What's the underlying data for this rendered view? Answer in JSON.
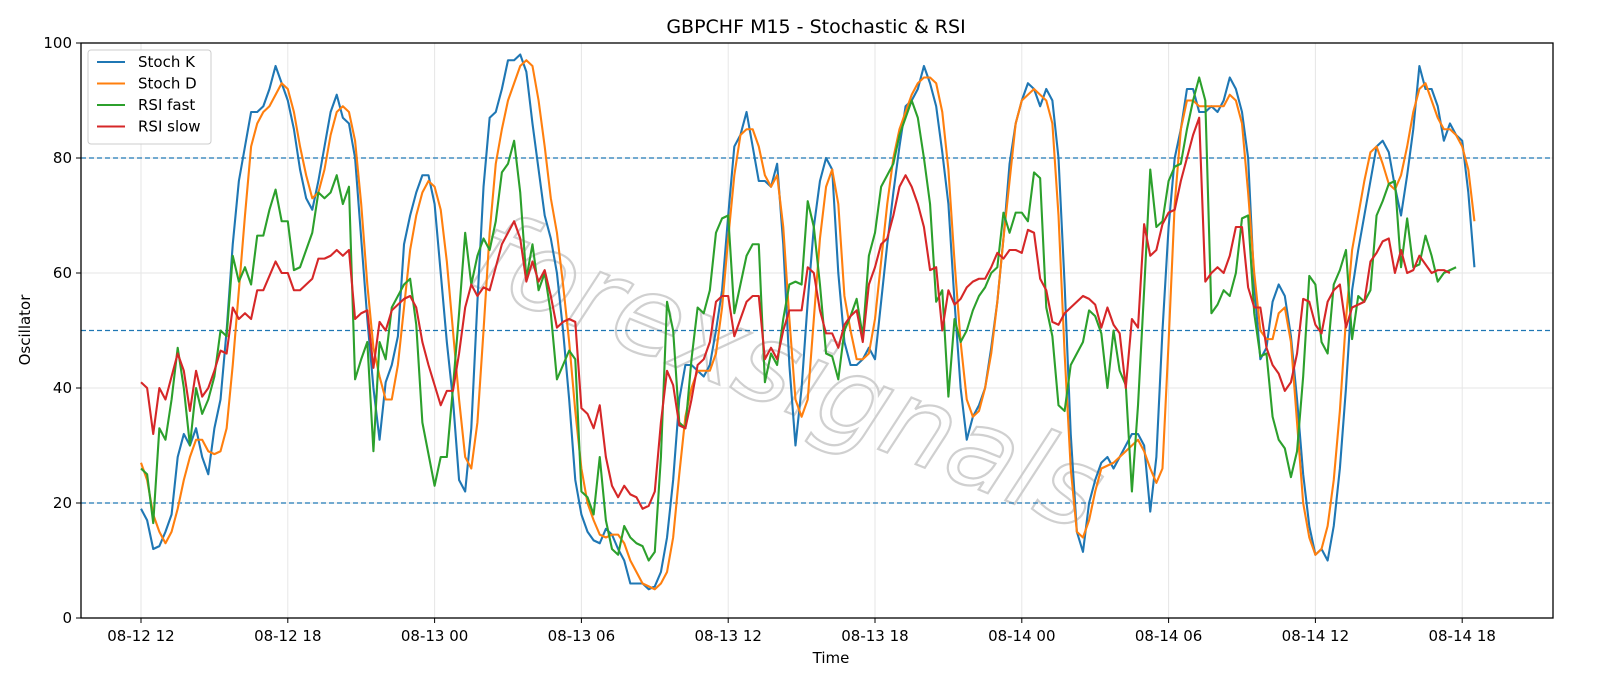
{
  "chart_data": {
    "type": "line",
    "title": "GBPCHF M15 - Stochastic & RSI",
    "xlabel": "Time",
    "ylabel": "Oscillator",
    "ylim": [
      0,
      100
    ],
    "yticks": [
      0,
      20,
      40,
      60,
      80,
      100
    ],
    "x_tick_labels": [
      "08-12 12",
      "08-12 18",
      "08-13 00",
      "08-13 06",
      "08-13 12",
      "08-13 18",
      "08-14 00",
      "08-14 06",
      "08-14 12",
      "08-14 18"
    ],
    "x_start": "08-12 12:00",
    "x_end": "08-14 19:00",
    "interval_minutes": 15,
    "grid": true,
    "legend_position": "top-left",
    "reference_lines": [
      20,
      50,
      80
    ],
    "reference_line_color": "#1f77b4",
    "watermark": "forexsignals",
    "series": [
      {
        "name": "Stoch K",
        "color": "#1f77b4",
        "values": [
          19,
          17,
          12,
          12.5,
          15,
          18,
          28,
          32,
          30,
          33,
          28,
          25,
          33,
          38,
          50,
          65,
          76,
          82,
          88,
          88,
          89,
          92,
          96,
          93,
          90,
          85,
          78,
          73,
          71,
          76,
          82,
          88,
          91,
          87,
          86,
          80,
          66,
          52,
          40,
          31,
          41,
          44,
          49,
          65,
          70,
          74,
          77,
          77,
          72,
          60,
          48,
          38,
          24,
          22,
          33,
          55,
          75,
          87,
          88,
          92,
          97,
          97,
          98,
          95,
          86,
          78,
          70,
          66,
          60,
          50,
          38,
          24,
          18,
          15,
          13.5,
          13,
          15.5,
          14.5,
          12,
          10,
          6,
          6,
          6,
          5,
          5.5,
          8,
          14,
          24,
          38,
          44,
          44,
          43,
          42,
          44,
          50,
          57,
          70,
          82,
          84,
          88,
          82,
          76,
          76,
          75,
          79,
          65,
          44,
          30,
          40,
          55,
          68,
          76,
          80,
          78,
          60,
          48,
          44,
          44,
          45,
          47,
          45,
          55,
          65,
          74,
          82,
          89,
          90,
          92,
          96,
          93,
          89,
          81,
          72,
          55,
          40,
          31,
          35,
          37,
          40,
          47,
          55,
          66,
          79,
          86,
          90,
          93,
          92,
          89,
          92,
          90,
          80,
          58,
          32,
          15,
          11.5,
          20,
          24,
          27,
          28,
          26,
          28,
          30,
          32,
          32,
          30,
          18.5,
          28,
          50,
          68,
          80,
          85,
          92,
          92,
          88,
          88,
          89,
          88,
          90,
          94,
          92,
          88,
          80,
          58,
          45,
          47,
          55,
          58,
          56,
          49,
          38,
          25,
          16,
          11,
          12,
          10,
          16,
          26,
          40,
          57,
          64,
          70,
          76,
          82,
          83,
          81,
          75,
          70,
          77,
          85,
          96,
          92,
          92,
          89,
          83,
          86,
          84,
          83,
          74,
          61
        ]
      },
      {
        "name": "Stoch D",
        "color": "#ff7f0e",
        "values": [
          27,
          24,
          18,
          15,
          13,
          15,
          19,
          24,
          28,
          31,
          31,
          29,
          28.5,
          29,
          33,
          44,
          57,
          70,
          82,
          86,
          88,
          89,
          91,
          93,
          92,
          88,
          82,
          77,
          73,
          74,
          78,
          84,
          88,
          89,
          88,
          83,
          72,
          58,
          47,
          42,
          38,
          38,
          44,
          54,
          64,
          70,
          74,
          76,
          75,
          71,
          62,
          50,
          38,
          28,
          26,
          34,
          50,
          67,
          79,
          85,
          90,
          93,
          96,
          97,
          96,
          90,
          82,
          73,
          67,
          58,
          48,
          36,
          26,
          20,
          17,
          14.5,
          14,
          14.5,
          14.5,
          13,
          10,
          8,
          6,
          5.5,
          5,
          6,
          8,
          14,
          25,
          35,
          40,
          43,
          43,
          43,
          46,
          54,
          66,
          77,
          84,
          85,
          85,
          82,
          77,
          75,
          77,
          68,
          52,
          38,
          35,
          38,
          52,
          66,
          75,
          78,
          72,
          56,
          50,
          45,
          45,
          46,
          52,
          62,
          72,
          80,
          85,
          88,
          91,
          93,
          94,
          94,
          93,
          88,
          78,
          62,
          48,
          38,
          35,
          36,
          40,
          46,
          55,
          66,
          76,
          86,
          90,
          91,
          92,
          91,
          90,
          86,
          70,
          46,
          26,
          15,
          14,
          17,
          22,
          26,
          26.5,
          27,
          28,
          29,
          30,
          31,
          29,
          26,
          23.5,
          26,
          48,
          72,
          85,
          90,
          90,
          89,
          89,
          89,
          89,
          89,
          91,
          90,
          86,
          74,
          60,
          50,
          48.5,
          48.5,
          53,
          54,
          48,
          34,
          20,
          14,
          11,
          12,
          16,
          24,
          36,
          52,
          64,
          70,
          76,
          81,
          82,
          79,
          75.5,
          74.5,
          77,
          82,
          88,
          92,
          93,
          90,
          87,
          85,
          85,
          84,
          82,
          78,
          69
        ]
      },
      {
        "name": "RSI fast",
        "color": "#2ca02c",
        "values": [
          26,
          25,
          16.5,
          33,
          31,
          38,
          47,
          40,
          30,
          40,
          35.5,
          38,
          42,
          50,
          49,
          63,
          58.5,
          61,
          58,
          66.5,
          66.5,
          71,
          74.5,
          69,
          69,
          60.5,
          61,
          64,
          67,
          74,
          73,
          74,
          77,
          72,
          75,
          41.5,
          45,
          48,
          29,
          48,
          45,
          54,
          56,
          58,
          59,
          51,
          34,
          28.5,
          23,
          28,
          28,
          40,
          53,
          67,
          58,
          63,
          66,
          64,
          69,
          77.5,
          79,
          83,
          74,
          59,
          65,
          57,
          60,
          53,
          41.5,
          44,
          46.5,
          45,
          22,
          21,
          18,
          28,
          17,
          12,
          11,
          16,
          14,
          13,
          12.5,
          10,
          11.5,
          28,
          55,
          50,
          34,
          33,
          45,
          54,
          53,
          57,
          67,
          69.5,
          70,
          53,
          58,
          63,
          65,
          65,
          41,
          46,
          44,
          52,
          58,
          58.5,
          58,
          72.5,
          68,
          58,
          46,
          45.5,
          41.5,
          50,
          52.5,
          55.5,
          49,
          63,
          67,
          75,
          77,
          79,
          84,
          87,
          90,
          87,
          80,
          72,
          55,
          57,
          38.5,
          52,
          48,
          50,
          53.5,
          56,
          57.5,
          60,
          61,
          70.5,
          67,
          70.5,
          70.5,
          69,
          77.5,
          76.5,
          54,
          49,
          37,
          36,
          44,
          46,
          48,
          53.5,
          52.5,
          49.5,
          40,
          50,
          43,
          40.5,
          22,
          37,
          57,
          78,
          68,
          69,
          76,
          78.5,
          79,
          85,
          90,
          94,
          90,
          53,
          54.5,
          57,
          56,
          60,
          69.5,
          70,
          53,
          45.5,
          46,
          35,
          31,
          29.5,
          24.5,
          29,
          42,
          59.5,
          58,
          48,
          46,
          58,
          60.5,
          64,
          48.5,
          56,
          55,
          57,
          70,
          72.5,
          75.5,
          76,
          61,
          69.5,
          61,
          61.5,
          66.5,
          63,
          58.5,
          60,
          60.5,
          61
        ]
      },
      {
        "name": "RSI slow",
        "color": "#d62728",
        "values": [
          41,
          40,
          32,
          40,
          38,
          42,
          46,
          43,
          36,
          43,
          38.5,
          40,
          43,
          46.5,
          46,
          54,
          52,
          53,
          52,
          57,
          57,
          59.5,
          62,
          60,
          60,
          57,
          57,
          58,
          59,
          62.5,
          62.5,
          63,
          64,
          63,
          64,
          52,
          53,
          53.5,
          43.5,
          51.5,
          50,
          53.5,
          54.5,
          55.5,
          56,
          54,
          48,
          44,
          40.5,
          37,
          39.5,
          39.5,
          46,
          54,
          58,
          56,
          57.5,
          57,
          61,
          65,
          67,
          69,
          66,
          58.5,
          62,
          58.5,
          60.5,
          56,
          50.5,
          51.5,
          52,
          51.5,
          36.5,
          35.5,
          33,
          37,
          28,
          23,
          21,
          23,
          21.5,
          21,
          19,
          19.5,
          22,
          34,
          43,
          40.5,
          33.5,
          33,
          38,
          44,
          45,
          48,
          55,
          56,
          56,
          49,
          52,
          55,
          56,
          56,
          45,
          47,
          45,
          50,
          53.5,
          53.5,
          53.5,
          61,
          60,
          53.5,
          49.5,
          49.5,
          47,
          51,
          52.5,
          53.5,
          48,
          58,
          61,
          65,
          66,
          70,
          75,
          77,
          75,
          72,
          68,
          60.5,
          61,
          50,
          57,
          54.5,
          55.5,
          57.5,
          58.5,
          59,
          59,
          61,
          63.5,
          62.5,
          64,
          64,
          63.5,
          67.5,
          67,
          59,
          57,
          51.5,
          51,
          53,
          54,
          55,
          56,
          55.5,
          54.5,
          50.5,
          54,
          51,
          49.5,
          40,
          52,
          50.5,
          68.5,
          63,
          64,
          68.5,
          70.5,
          71,
          76,
          80,
          84,
          87,
          58.5,
          60,
          61,
          60,
          63,
          68,
          68,
          57.5,
          54,
          54,
          47,
          44,
          42.5,
          39.5,
          41,
          46,
          55.5,
          55,
          51,
          49.5,
          55,
          57,
          58,
          50.5,
          54,
          54.5,
          55,
          62,
          63.5,
          65.5,
          66,
          60,
          64,
          60,
          60.5,
          63,
          61.5,
          60,
          60.5,
          60.5,
          60
        ]
      }
    ]
  }
}
